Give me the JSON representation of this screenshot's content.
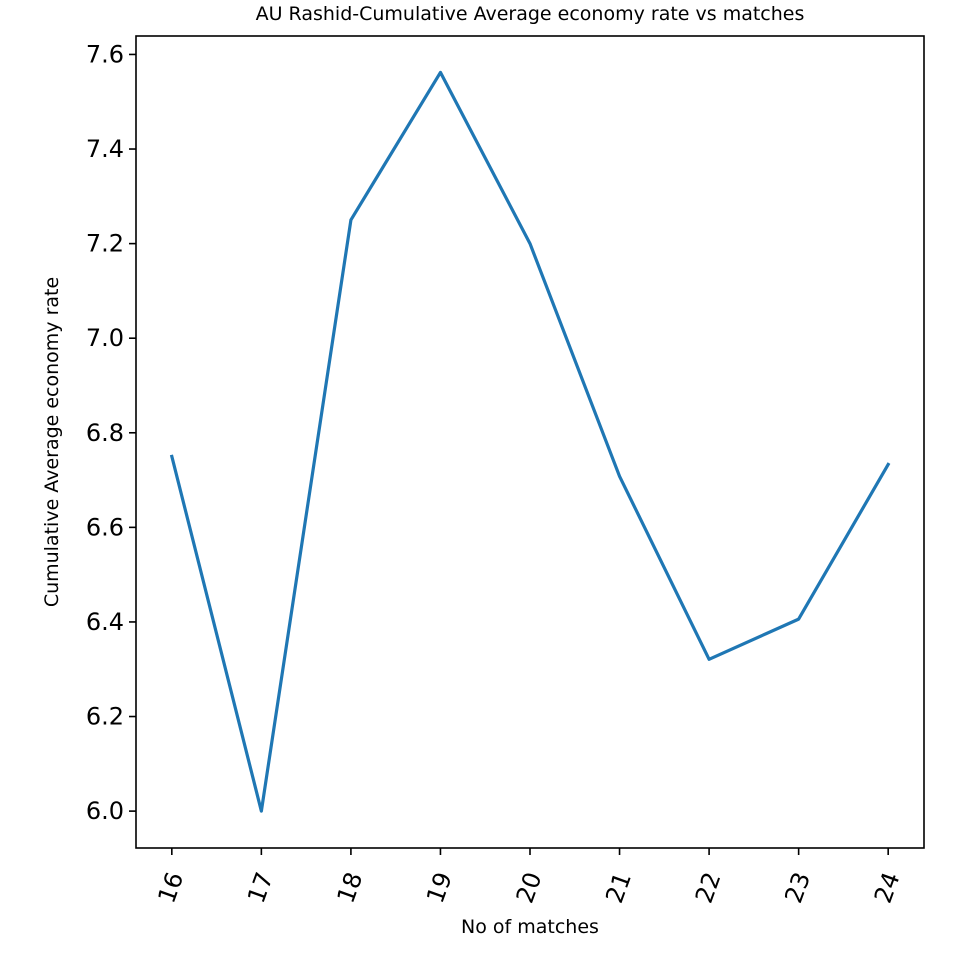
{
  "chart_data": {
    "type": "line",
    "title": "AU Rashid-Cumulative Average economy rate vs matches",
    "xlabel": "No of matches",
    "ylabel": "Cumulative Average economy rate",
    "x": [
      16,
      17,
      18,
      19,
      20,
      21,
      22,
      23,
      24
    ],
    "series": [
      {
        "values": [
          6.75,
          6.0,
          7.25,
          7.562,
          7.2,
          6.708,
          6.321,
          6.406,
          6.733
        ],
        "color": "#1f77b4"
      }
    ],
    "xticks": [
      "16",
      "17",
      "18",
      "19",
      "20",
      "21",
      "22",
      "23",
      "24"
    ],
    "xtick_rotation": -70,
    "yticks": [
      "6.0",
      "6.2",
      "6.4",
      "6.6",
      "6.8",
      "7.0",
      "7.2",
      "7.4",
      "7.6"
    ],
    "xlim": [
      15.6,
      24.4
    ],
    "ylim": [
      5.922,
      7.639
    ],
    "grid": false,
    "legend": false
  }
}
